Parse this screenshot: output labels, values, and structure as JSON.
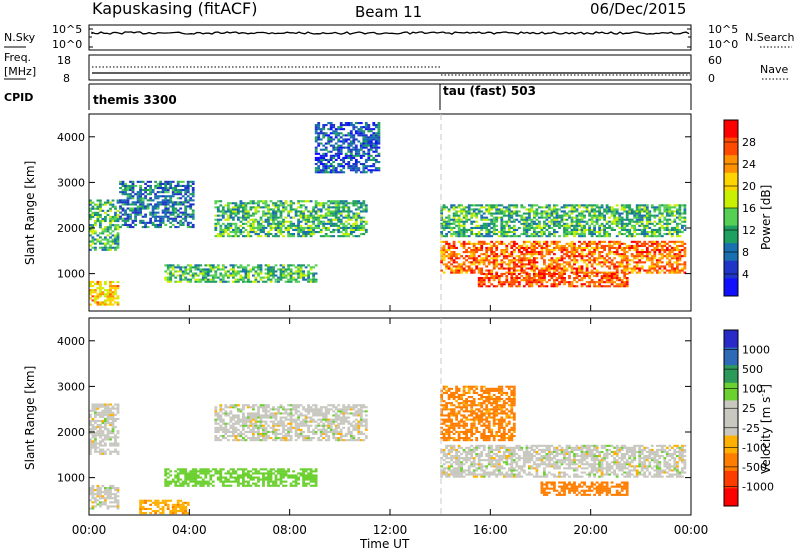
{
  "header": {
    "station": "Kapuskasing (fitACF)",
    "beam": "Beam 11",
    "date": "06/Dec/2015"
  },
  "nsky_panel": {
    "label": "N.Sky",
    "left_ticks": [
      "10^5",
      "10^0"
    ],
    "right_ticks": [
      "10^5",
      "10^0"
    ],
    "right_label": "N.Search"
  },
  "freq_panel": {
    "label_line1": "Freq.",
    "label_line2": "[MHz]",
    "left_ticks": [
      "18",
      "8"
    ],
    "right_ticks": [
      "60",
      "0"
    ],
    "right_label": "Nave"
  },
  "cpid_panel": {
    "label": "CPID",
    "modes": [
      {
        "name": "themis 3300",
        "start_hour": 0
      },
      {
        "name": "tau (fast) 503",
        "start_hour": 14
      }
    ]
  },
  "x_axis": {
    "label": "Time UT",
    "ticks": [
      "00:00",
      "04:00",
      "08:00",
      "12:00",
      "16:00",
      "20:00",
      "00:00"
    ],
    "range": [
      0,
      24
    ]
  },
  "power_colorbar": {
    "label": "Power [dB]",
    "ticks": [
      "28",
      "24",
      "20",
      "16",
      "12",
      "8",
      "4"
    ],
    "colors": [
      "#ff0000",
      "#ff4a00",
      "#ff9000",
      "#ffd400",
      "#c8f000",
      "#55d055",
      "#20a060",
      "#1a6fb0",
      "#1e35c8",
      "#1010ff"
    ]
  },
  "velocity_colorbar": {
    "label": "Velocity [m s",
    "exponent": "-1",
    "bracket_close": "]",
    "ticks": [
      "1000",
      "500",
      "100",
      "25",
      "-25",
      "-100",
      "-500",
      "-1000"
    ],
    "colors": [
      "#2a2ac8",
      "#2e6ab8",
      "#2e9a5a",
      "#6cd030",
      "#c8c8c0",
      "#c8c8c0",
      "#ffb000",
      "#ff7e00",
      "#ff3c00",
      "#ff0000"
    ]
  },
  "chart_data": [
    {
      "type": "heatmap",
      "title": "Power",
      "xlabel": "Time UT",
      "ylabel": "Slant Range [km]",
      "xlim": [
        0,
        24
      ],
      "ylim": [
        180,
        4500
      ],
      "yticks": [
        1000,
        2000,
        3000,
        4000
      ],
      "colorbar": {
        "label": "Power [dB]",
        "range": [
          0,
          30
        ]
      },
      "regions": [
        {
          "t": [
            0,
            1.2
          ],
          "r": [
            300,
            800
          ],
          "level": 20
        },
        {
          "t": [
            0,
            1.2
          ],
          "r": [
            1500,
            2600
          ],
          "level": 12
        },
        {
          "t": [
            1.2,
            4.2
          ],
          "r": [
            2000,
            3000
          ],
          "level": 8
        },
        {
          "t": [
            3.0,
            9.0
          ],
          "r": [
            800,
            1200
          ],
          "level": 12
        },
        {
          "t": [
            5.0,
            11.0
          ],
          "r": [
            1800,
            2600
          ],
          "level": 12
        },
        {
          "t": [
            9.0,
            11.5
          ],
          "r": [
            3200,
            4300
          ],
          "level": 6
        },
        {
          "t": [
            14.0,
            23.8
          ],
          "r": [
            1000,
            1700
          ],
          "level": 24
        },
        {
          "t": [
            15.5,
            21.5
          ],
          "r": [
            700,
            1000
          ],
          "level": 26
        },
        {
          "t": [
            14.0,
            23.8
          ],
          "r": [
            1800,
            2500
          ],
          "level": 12
        }
      ]
    },
    {
      "type": "heatmap",
      "title": "Velocity",
      "xlabel": "Time UT",
      "ylabel": "Slant Range [km]",
      "xlim": [
        0,
        24
      ],
      "ylim": [
        180,
        4500
      ],
      "yticks": [
        1000,
        2000,
        3000,
        4000
      ],
      "colorbar": {
        "label": "Velocity [m s-1]",
        "range": [
          -1000,
          1000
        ]
      },
      "regions": [
        {
          "t": [
            0,
            1.2
          ],
          "r": [
            300,
            800
          ],
          "level": 0
        },
        {
          "t": [
            0,
            1.2
          ],
          "r": [
            1500,
            2600
          ],
          "level": 0
        },
        {
          "t": [
            2.0,
            4.0
          ],
          "r": [
            200,
            500
          ],
          "level": -80
        },
        {
          "t": [
            5.0,
            11.0
          ],
          "r": [
            1800,
            2600
          ],
          "level": 0
        },
        {
          "t": [
            3.0,
            9.0
          ],
          "r": [
            800,
            1200
          ],
          "level": 60
        },
        {
          "t": [
            14.0,
            23.8
          ],
          "r": [
            1000,
            1700
          ],
          "level": 0
        },
        {
          "t": [
            18.0,
            21.5
          ],
          "r": [
            600,
            900
          ],
          "level": -150
        },
        {
          "t": [
            14.0,
            17.0
          ],
          "r": [
            1800,
            3000
          ],
          "level": -120
        }
      ]
    }
  ]
}
